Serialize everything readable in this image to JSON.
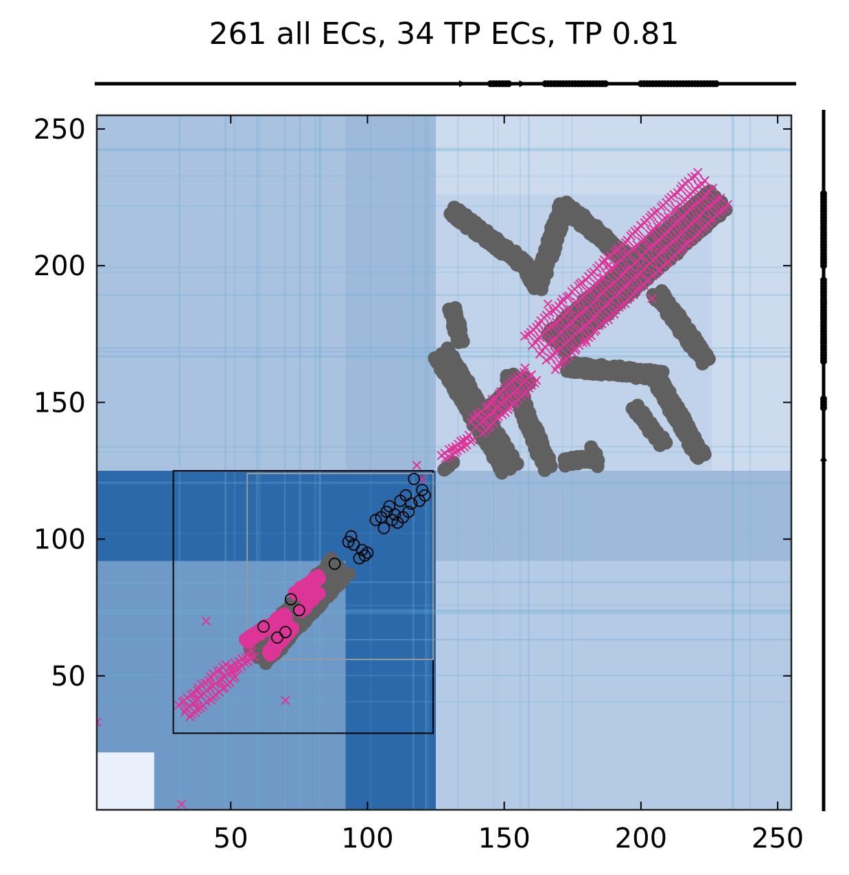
{
  "chart_data": {
    "type": "scatter",
    "title": "261 all ECs, 34 TP ECs, TP 0.81",
    "xlabel": "",
    "ylabel": "",
    "xlim": [
      1,
      255
    ],
    "ylim": [
      1,
      255
    ],
    "xticks": [
      50,
      100,
      150,
      200,
      250
    ],
    "yticks": [
      50,
      100,
      150,
      200,
      250
    ],
    "grid": false,
    "colors": {
      "contacts": "#606060",
      "ecs": "#dd3497",
      "tp_marker_edge": "#000000",
      "background_light": "#eef3fd",
      "background_dark": "#08519c",
      "domain_box": "#000000",
      "inner_box": "#999999"
    },
    "domain_box": {
      "x": [
        29,
        124
      ],
      "y": [
        29,
        125
      ]
    },
    "inner_box": {
      "x": [
        56,
        124
      ],
      "y": [
        56,
        124
      ]
    },
    "background_blocks": [
      {
        "x": [
          1,
          255
        ],
        "y": [
          125,
          255
        ],
        "level": 0.15
      },
      {
        "x": [
          1,
          125
        ],
        "y": [
          1,
          125
        ],
        "level": 0.55
      },
      {
        "x": [
          92,
          125
        ],
        "y": [
          1,
          125
        ],
        "level": 0.85
      },
      {
        "x": [
          1,
          125
        ],
        "y": [
          92,
          125
        ],
        "level": 0.85
      },
      {
        "x": [
          125,
          255
        ],
        "y": [
          1,
          125
        ],
        "level": 0.25
      },
      {
        "x": [
          1,
          125
        ],
        "y": [
          125,
          255
        ],
        "level": 0.3
      },
      {
        "x": [
          125,
          226
        ],
        "y": [
          125,
          226
        ],
        "level": 0.2
      },
      {
        "x": [
          92,
          125
        ],
        "y": [
          125,
          255
        ],
        "level": 0.35
      },
      {
        "x": [
          125,
          255
        ],
        "y": [
          92,
          125
        ],
        "level": 0.35
      },
      {
        "x": [
          1,
          22
        ],
        "y": [
          1,
          22
        ],
        "level": 0.02
      }
    ],
    "series": [
      {
        "kind": "contact_map",
        "segments": [
          {
            "from": [
              60,
              57
            ],
            "to": [
              90,
              90
            ],
            "spread": 4,
            "width": 3
          },
          {
            "from": [
              128,
              125
            ],
            "to": [
              131,
              128
            ],
            "spread": 2,
            "width": 1
          },
          {
            "from": [
              131,
              220
            ],
            "to": [
              158,
              200
            ],
            "spread": 3,
            "width": 2
          },
          {
            "from": [
              158,
              200
            ],
            "to": [
              162,
              192
            ],
            "spread": 2,
            "width": 2
          },
          {
            "from": [
              162,
              192
            ],
            "to": [
              172,
              222
            ],
            "spread": 3,
            "width": 2
          },
          {
            "from": [
              172,
              222
            ],
            "to": [
              186,
              210
            ],
            "spread": 3,
            "width": 2
          },
          {
            "from": [
              186,
              210
            ],
            "to": [
              198,
              200
            ],
            "spread": 3,
            "width": 2
          },
          {
            "from": [
              131,
              184
            ],
            "to": [
              134,
              172
            ],
            "spread": 2,
            "width": 2
          },
          {
            "from": [
              127,
              168
            ],
            "to": [
              152,
              126
            ],
            "spread": 3,
            "width": 3
          },
          {
            "from": [
              152,
              160
            ],
            "to": [
              166,
              126
            ],
            "spread": 3,
            "width": 2
          },
          {
            "from": [
              169,
              172
            ],
            "to": [
              228,
              224
            ],
            "spread": 3,
            "width": 4
          },
          {
            "from": [
              173,
              163
            ],
            "to": [
              208,
              160
            ],
            "spread": 3,
            "width": 2
          },
          {
            "from": [
              206,
              190
            ],
            "to": [
              224,
              165
            ],
            "spread": 3,
            "width": 2
          },
          {
            "from": [
              205,
              160
            ],
            "to": [
              222,
              130
            ],
            "spread": 3,
            "width": 2
          },
          {
            "from": [
              198,
              148
            ],
            "to": [
              208,
              135
            ],
            "spread": 2,
            "width": 2
          },
          {
            "from": [
              172,
              128
            ],
            "to": [
              184,
              130
            ],
            "spread": 2,
            "width": 2
          },
          {
            "from": [
              182,
              134
            ],
            "to": [
              184,
              127
            ],
            "spread": 1,
            "width": 1
          },
          {
            "from": [
              142,
              145
            ],
            "to": [
              158,
              158
            ],
            "spread": 3,
            "width": 2
          }
        ]
      },
      {
        "kind": "ec_x",
        "segments": [
          {
            "from": [
              33,
              37
            ],
            "to": [
              50,
              52
            ],
            "spread": 3,
            "width": 3
          },
          {
            "from": [
              50,
              52
            ],
            "to": [
              58,
              58
            ],
            "spread": 2,
            "width": 2
          },
          {
            "from": [
              128,
              130
            ],
            "to": [
              138,
              137
            ],
            "spread": 2,
            "width": 2
          },
          {
            "from": [
              140,
              141
            ],
            "to": [
              160,
              160
            ],
            "spread": 3,
            "width": 3
          },
          {
            "from": [
              163,
              168
            ],
            "to": [
              226,
              228
            ],
            "spread": 4,
            "width": 5
          }
        ],
        "points": [
          [
            1,
            33
          ],
          [
            32,
            3
          ],
          [
            41,
            70
          ],
          [
            70,
            41
          ],
          [
            118,
            127
          ],
          [
            120,
            122
          ],
          [
            166,
            186
          ],
          [
            180,
            172
          ],
          [
            188,
            200
          ],
          [
            204,
            188
          ]
        ]
      },
      {
        "kind": "ec_tp_filled",
        "segments": [
          {
            "from": [
              56,
              63
            ],
            "to": [
              70,
              72
            ],
            "spread": 1,
            "width": 2
          },
          {
            "from": [
              64,
              58
            ],
            "to": [
              72,
              68
            ],
            "spread": 1,
            "width": 2
          },
          {
            "from": [
              74,
              80
            ],
            "to": [
              82,
              86
            ],
            "spread": 1,
            "width": 2
          },
          {
            "from": [
              76,
              74
            ],
            "to": [
              82,
              80
            ],
            "spread": 1,
            "width": 1
          }
        ]
      },
      {
        "kind": "ec_tp_open",
        "points": [
          [
            93,
            99
          ],
          [
            94,
            101
          ],
          [
            95,
            98
          ],
          [
            97,
            93
          ],
          [
            98,
            96
          ],
          [
            99,
            94
          ],
          [
            100,
            95
          ],
          [
            103,
            107
          ],
          [
            105,
            108
          ],
          [
            107,
            110
          ],
          [
            108,
            112
          ],
          [
            110,
            109
          ],
          [
            112,
            114
          ],
          [
            114,
            116
          ],
          [
            117,
            122
          ],
          [
            120,
            118
          ],
          [
            106,
            104
          ],
          [
            109,
            107
          ],
          [
            111,
            106
          ],
          [
            113,
            108
          ],
          [
            115,
            110
          ],
          [
            116,
            113
          ],
          [
            119,
            114
          ],
          [
            121,
            116
          ],
          [
            67,
            64
          ],
          [
            70,
            66
          ],
          [
            62,
            68
          ],
          [
            88,
            91
          ],
          [
            72,
            78
          ],
          [
            75,
            74
          ]
        ]
      }
    ],
    "top_track": {
      "arrows": [
        135,
        157
      ],
      "dots": [
        [
          145,
          152
        ],
        [
          165,
          187
        ],
        [
          200,
          228
        ]
      ]
    },
    "right_track": {
      "arrows": [
        130
      ],
      "dots": [
        [
          148,
          152
        ],
        [
          165,
          195
        ],
        [
          200,
          227
        ]
      ]
    }
  }
}
